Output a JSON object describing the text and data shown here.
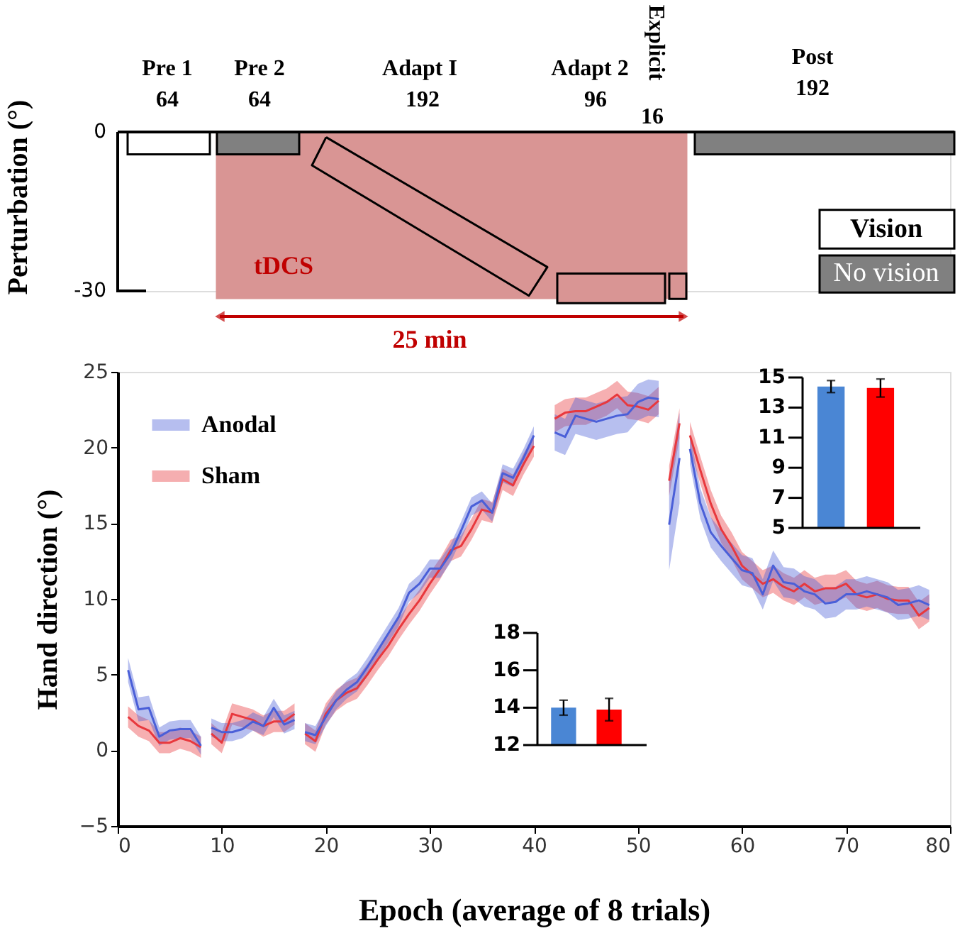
{
  "chart_data": [
    {
      "type": "other",
      "ylabel": "Perturbation (°)",
      "annotations": [
        "Pre 1",
        "64",
        "Pre 2",
        "64",
        "Adapt I",
        "192",
        "Adapt 2",
        "96",
        "Explicit",
        "16",
        "Post",
        "192",
        "tDCS",
        "25 min",
        "Vision",
        "No vision",
        "0",
        "-30"
      ]
    },
    {
      "type": "line",
      "xlabel": "Epoch (average of 8 trials)",
      "ylabel": "Hand direction (°)",
      "xlim": [
        0,
        80
      ],
      "xticks": [
        0,
        10,
        20,
        30,
        40,
        50,
        60,
        70,
        80
      ],
      "ylim": [
        -5,
        25
      ],
      "yticks": [
        -5,
        0,
        5,
        10,
        15,
        20,
        25
      ],
      "grid": false,
      "legend": "top left",
      "marker": "none",
      "line_style": "solid",
      "x": [
        1,
        2,
        3,
        4,
        5,
        6,
        7,
        8,
        8.5,
        9,
        10,
        11,
        12,
        13,
        14,
        15,
        16,
        17,
        17.5,
        18,
        19,
        20,
        21,
        22,
        23,
        24,
        25,
        26,
        27,
        28,
        29,
        30,
        31,
        32,
        33,
        34,
        35,
        36,
        37,
        38,
        39,
        40,
        41,
        42,
        43,
        44,
        45,
        46,
        47,
        48,
        49,
        50,
        51,
        52,
        52.5,
        53,
        54,
        54.5,
        55,
        56,
        57,
        58,
        59,
        60,
        61,
        62,
        63,
        64,
        65,
        66,
        67,
        68,
        69,
        70,
        71,
        72,
        73,
        74,
        75,
        76,
        77,
        78
      ],
      "series": [
        {
          "name": "Sham",
          "color": "#e8383d",
          "values": [
            2.2,
            1.6,
            1.3,
            0.5,
            0.5,
            0.8,
            0.6,
            0.2,
            null,
            1.1,
            0.5,
            2.4,
            2.2,
            2.0,
            1.6,
            1.9,
            1.9,
            2.4,
            null,
            1.1,
            0.6,
            2.4,
            3.3,
            3.8,
            4.1,
            5.0,
            6.0,
            6.9,
            8.0,
            9.0,
            9.9,
            11.0,
            12.0,
            13.2,
            13.5,
            14.6,
            15.9,
            15.7,
            17.9,
            17.5,
            18.9,
            20.1,
            null,
            21.9,
            22.3,
            22.4,
            22.4,
            22.7,
            23.0,
            23.5,
            22.8,
            22.7,
            22.5,
            23.1,
            null,
            17.8,
            21.6,
            null,
            20.8,
            18.5,
            16.3,
            14.6,
            13.5,
            12.2,
            11.6,
            11.0,
            11.3,
            10.8,
            10.5,
            11.0,
            10.5,
            10.7,
            10.7,
            11.0,
            10.3,
            10.1,
            10.3,
            10.0,
            9.9,
            9.9,
            8.9,
            9.4
          ],
          "lower": [
            1.5,
            0.9,
            0.6,
            -0.2,
            -0.2,
            0.1,
            -0.1,
            -0.5,
            null,
            0.4,
            -0.2,
            1.7,
            1.5,
            1.3,
            0.9,
            1.2,
            1.2,
            1.7,
            null,
            0.4,
            -0.1,
            1.7,
            2.6,
            3.1,
            3.4,
            4.3,
            5.3,
            6.2,
            7.3,
            8.3,
            9.2,
            10.3,
            11.3,
            12.5,
            12.8,
            13.9,
            15.2,
            15.0,
            17.2,
            16.8,
            18.2,
            19.4,
            null,
            21.0,
            21.4,
            21.5,
            21.5,
            21.8,
            22.1,
            22.6,
            21.9,
            21.8,
            21.6,
            22.2,
            null,
            16.8,
            20.6,
            null,
            19.9,
            17.6,
            15.4,
            13.7,
            12.6,
            11.3,
            10.7,
            10.1,
            10.4,
            9.9,
            9.6,
            10.1,
            9.6,
            9.8,
            9.8,
            10.1,
            9.4,
            9.2,
            9.4,
            9.1,
            9.0,
            9.0,
            8.0,
            8.5
          ],
          "upper": [
            2.9,
            2.3,
            2.0,
            1.2,
            1.2,
            1.5,
            1.3,
            0.9,
            null,
            1.8,
            1.2,
            3.1,
            2.9,
            2.7,
            2.3,
            2.6,
            2.6,
            3.1,
            null,
            1.8,
            1.3,
            3.1,
            4.0,
            4.5,
            4.8,
            5.7,
            6.7,
            7.6,
            8.7,
            9.7,
            10.6,
            11.7,
            12.7,
            13.9,
            14.2,
            15.3,
            16.6,
            16.4,
            18.6,
            18.2,
            19.6,
            20.8,
            null,
            22.8,
            23.2,
            23.3,
            23.3,
            23.6,
            23.9,
            24.4,
            23.7,
            23.6,
            23.4,
            24.0,
            null,
            18.8,
            22.6,
            null,
            21.7,
            19.4,
            17.2,
            15.5,
            14.4,
            13.1,
            12.5,
            11.9,
            12.2,
            11.7,
            11.4,
            11.9,
            11.4,
            11.6,
            11.6,
            11.9,
            11.2,
            11.0,
            11.2,
            10.9,
            10.8,
            10.8,
            9.8,
            10.3
          ]
        },
        {
          "name": "Anodal",
          "color": "#4a5fd8",
          "values": [
            5.3,
            2.7,
            2.8,
            0.9,
            1.3,
            1.4,
            1.4,
            0.3,
            null,
            1.5,
            1.2,
            1.2,
            1.4,
            1.9,
            1.6,
            2.8,
            1.7,
            2.0,
            null,
            1.2,
            1.0,
            2.2,
            3.3,
            4.0,
            4.5,
            5.5,
            6.6,
            7.7,
            8.8,
            10.4,
            11.0,
            12.0,
            12.0,
            13.0,
            14.5,
            16.1,
            16.5,
            15.7,
            18.3,
            18.0,
            19.3,
            20.8,
            null,
            21.0,
            20.7,
            22.1,
            21.9,
            21.7,
            21.9,
            22.1,
            22.2,
            23.0,
            23.3,
            23.2,
            null,
            14.9,
            19.3,
            null,
            19.9,
            16.3,
            14.4,
            13.5,
            12.7,
            11.9,
            11.7,
            10.3,
            12.2,
            11.1,
            11.0,
            10.5,
            10.3,
            9.7,
            9.8,
            10.3,
            10.3,
            10.5,
            10.3,
            10.1,
            9.6,
            9.7,
            9.9,
            9.6
          ],
          "lower": [
            4.5,
            1.9,
            2.0,
            0.3,
            0.7,
            0.8,
            0.8,
            -0.3,
            null,
            0.9,
            0.6,
            0.6,
            0.8,
            1.3,
            1.0,
            2.2,
            1.1,
            1.4,
            null,
            0.6,
            0.4,
            1.6,
            2.7,
            3.4,
            3.9,
            4.9,
            6.0,
            7.1,
            8.2,
            9.8,
            10.4,
            11.4,
            11.4,
            12.4,
            13.9,
            15.5,
            15.9,
            15.1,
            17.7,
            17.4,
            18.7,
            20.2,
            null,
            19.8,
            19.5,
            20.9,
            20.7,
            20.5,
            20.7,
            20.9,
            21.0,
            21.8,
            22.1,
            22.0,
            null,
            11.9,
            16.3,
            null,
            18.9,
            15.3,
            13.4,
            12.5,
            11.7,
            10.9,
            10.7,
            9.3,
            11.2,
            10.1,
            10.0,
            9.5,
            9.3,
            8.7,
            8.8,
            9.3,
            9.3,
            9.5,
            9.3,
            9.1,
            8.6,
            8.7,
            8.9,
            8.6
          ],
          "upper": [
            6.1,
            3.5,
            3.6,
            1.5,
            1.9,
            2.0,
            2.0,
            0.9,
            null,
            2.1,
            1.8,
            1.8,
            2.0,
            2.5,
            2.2,
            3.4,
            2.3,
            2.6,
            null,
            1.8,
            1.6,
            2.8,
            3.9,
            4.6,
            5.1,
            6.1,
            7.2,
            8.3,
            9.4,
            11.0,
            11.6,
            12.6,
            12.6,
            13.6,
            15.1,
            16.7,
            17.1,
            16.3,
            18.9,
            18.6,
            19.9,
            21.4,
            null,
            22.2,
            21.9,
            23.3,
            23.1,
            22.9,
            23.1,
            23.3,
            23.4,
            24.2,
            24.5,
            24.4,
            null,
            17.9,
            22.3,
            null,
            20.9,
            17.3,
            15.4,
            14.5,
            13.7,
            12.9,
            12.7,
            11.3,
            13.2,
            12.1,
            12.0,
            11.5,
            11.3,
            10.7,
            10.8,
            11.3,
            11.3,
            11.5,
            11.3,
            11.1,
            10.6,
            10.7,
            10.9,
            10.6
          ]
        }
      ]
    },
    {
      "type": "bar",
      "categories": [
        null,
        null
      ],
      "values": [
        14.4,
        14.3
      ],
      "errors": [
        0.4,
        0.6
      ],
      "colors": [
        "#4a86d4",
        "#ff0000"
      ],
      "ylim": [
        5,
        15
      ],
      "yticks": [
        5,
        7,
        9,
        11,
        13,
        15
      ],
      "tick_labels": "y"
    },
    {
      "type": "bar",
      "categories": [
        null,
        null
      ],
      "values": [
        14.0,
        13.9
      ],
      "errors": [
        0.4,
        0.6
      ],
      "colors": [
        "#4a86d4",
        "#ff0000"
      ],
      "ylim": [
        12,
        18
      ],
      "yticks": [
        12,
        14,
        16,
        18
      ],
      "tick_labels": "y"
    }
  ]
}
